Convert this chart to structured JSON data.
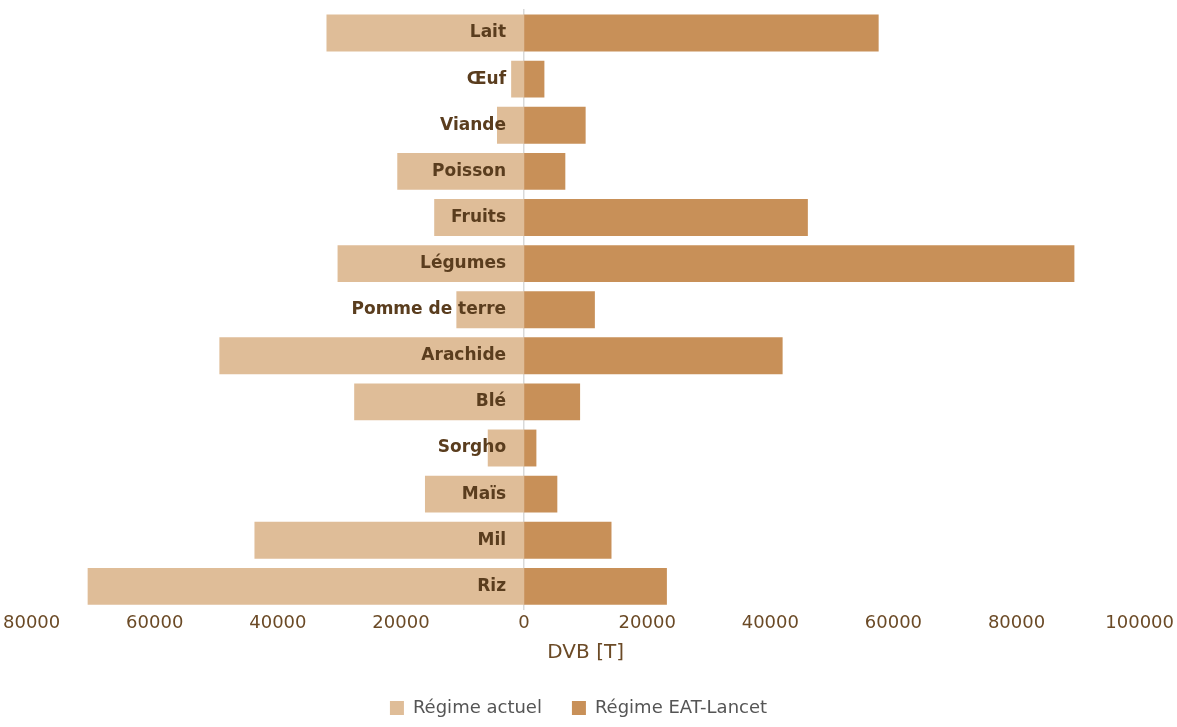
{
  "chart_data": {
    "type": "bar",
    "orientation": "horizontal",
    "stacked": true,
    "xlabel": "DVB [T]",
    "categories": [
      "Lait",
      "Œuf",
      "Viande",
      "Poisson",
      "Fruits",
      "Légumes",
      "Pomme de terre",
      "Arachide",
      "Blé",
      "Sorgho",
      "Maïs",
      "Mil",
      "Riz"
    ],
    "series": [
      {
        "name": "Régime actuel",
        "color": "#dfbd98",
        "values": [
          -32100,
          -2100,
          -4400,
          -20600,
          -14600,
          -30300,
          -11000,
          -49500,
          -27600,
          -5900,
          -16100,
          -43800,
          -70900
        ]
      },
      {
        "name": "Régime EAT-Lancet",
        "color": "#c89058",
        "values": [
          57600,
          3300,
          10000,
          6700,
          46100,
          89400,
          11500,
          42000,
          9100,
          2000,
          5400,
          14200,
          23200
        ]
      }
    ],
    "xlim": [
      -80000,
      100000
    ],
    "xticks": [
      {
        "value": -80000,
        "label": "80000"
      },
      {
        "value": -60000,
        "label": "60000"
      },
      {
        "value": -40000,
        "label": "40000"
      },
      {
        "value": -20000,
        "label": "20000"
      },
      0,
      20000,
      40000,
      60000,
      80000,
      100000
    ],
    "grid": false,
    "legend": "bottom"
  }
}
